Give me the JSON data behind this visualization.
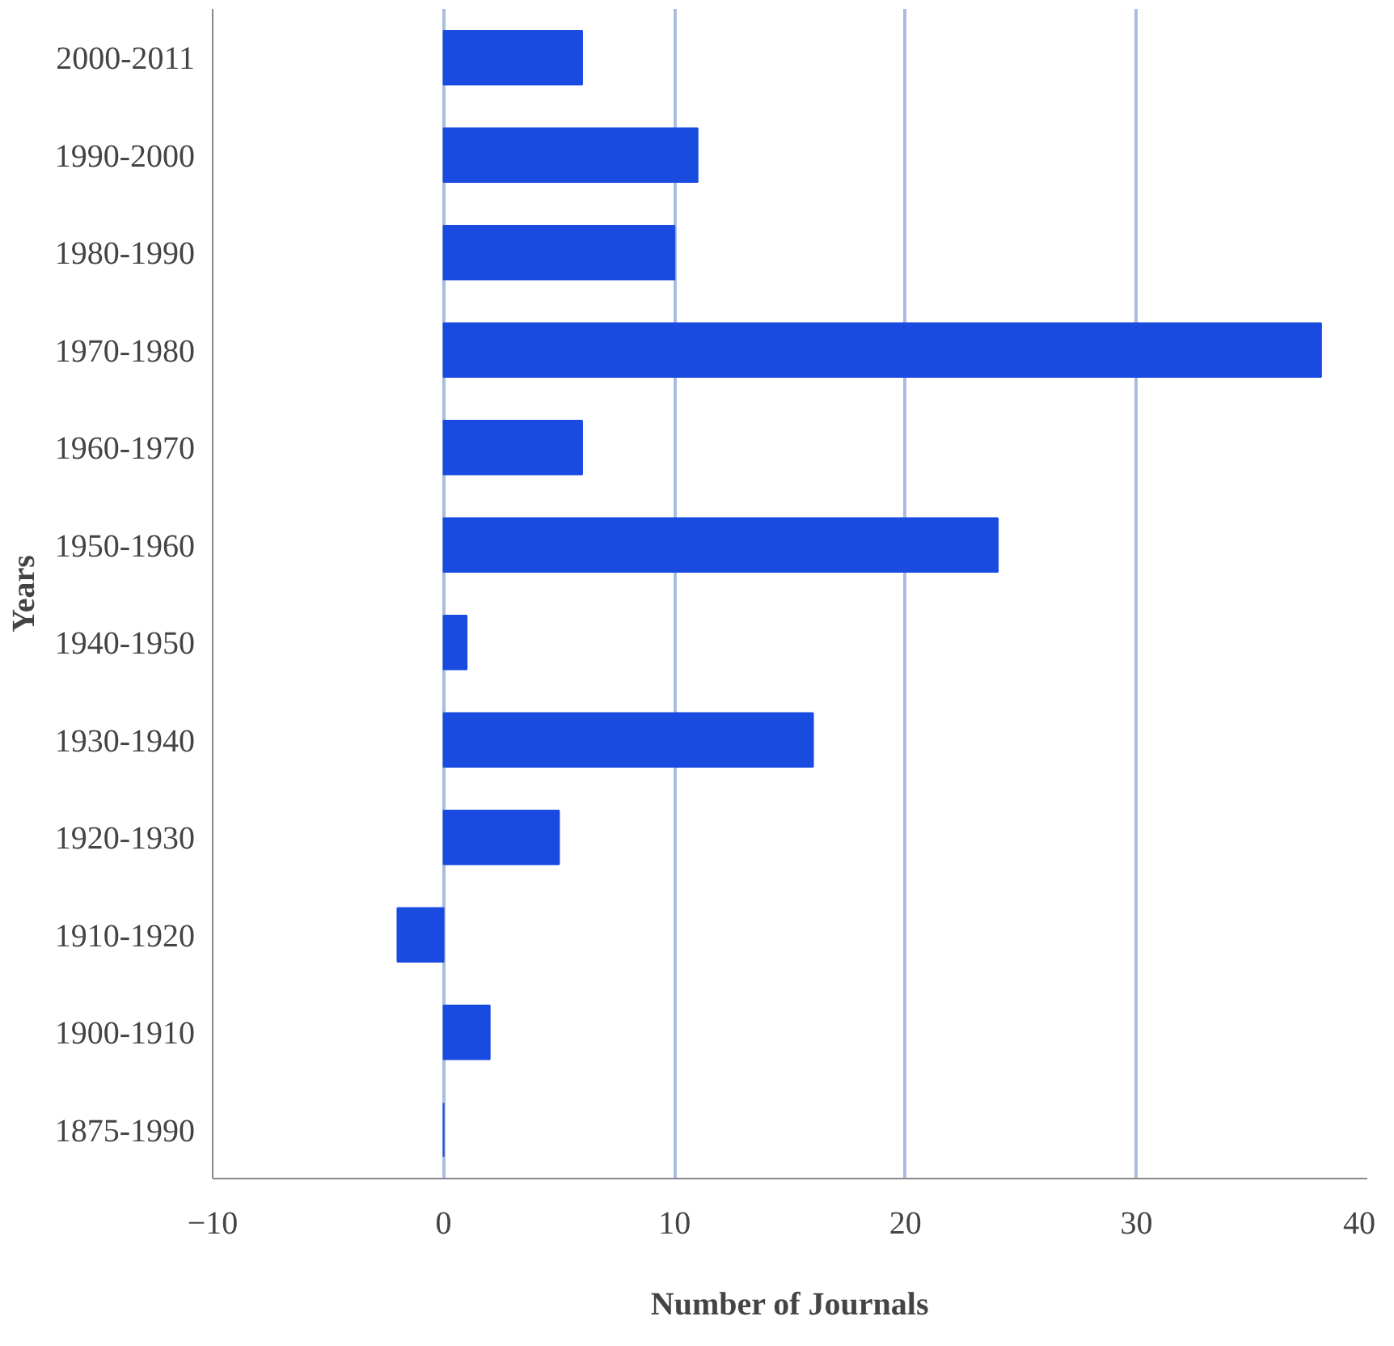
{
  "chart_data": {
    "type": "bar",
    "orientation": "horizontal",
    "xlabel": "Number of Journals",
    "ylabel": "Years",
    "categories": [
      "2000-2011",
      "1990-2000",
      "1980-1990",
      "1970-1980",
      "1960-1970",
      "1950-1960",
      "1940-1950",
      "1930-1940",
      "1920-1930",
      "1910-1920",
      "1900-1910",
      "1875-1990"
    ],
    "values": [
      6,
      11,
      10,
      38,
      6,
      24,
      1,
      16,
      5,
      -2,
      2,
      0
    ],
    "color": "#1a4be0",
    "xlim": [
      -10,
      40
    ],
    "xticks": [
      -10,
      0,
      10,
      20,
      30,
      40
    ],
    "grid": "x"
  }
}
